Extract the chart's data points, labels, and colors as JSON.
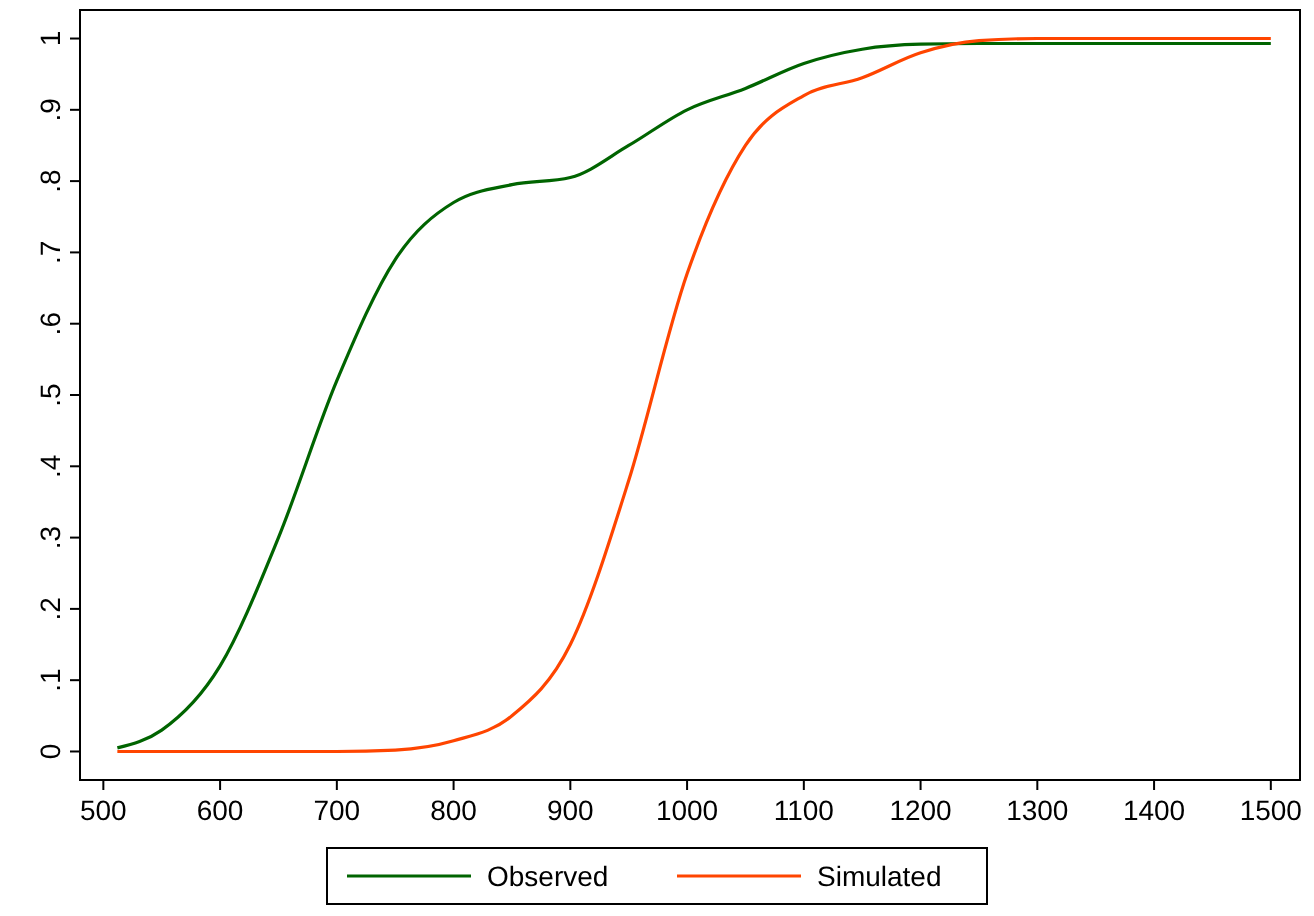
{
  "chart_data": {
    "type": "line",
    "x": [
      512,
      550,
      600,
      650,
      700,
      750,
      800,
      850,
      900,
      950,
      1000,
      1050,
      1100,
      1150,
      1200,
      1250,
      1300,
      1500
    ],
    "series": [
      {
        "name": "Observed",
        "color": "#006400",
        "values": [
          0.005,
          0.03,
          0.12,
          0.3,
          0.52,
          0.69,
          0.77,
          0.795,
          0.805,
          0.85,
          0.9,
          0.93,
          0.965,
          0.985,
          0.992,
          0.993,
          0.993,
          0.993
        ]
      },
      {
        "name": "Simulated",
        "color": "#ff4500",
        "values": [
          0,
          0,
          0,
          0,
          0,
          0.002,
          0.015,
          0.05,
          0.15,
          0.38,
          0.67,
          0.85,
          0.92,
          0.945,
          0.98,
          0.997,
          1.0,
          1.0
        ]
      }
    ],
    "xlim": [
      480,
      1525
    ],
    "xticks": [
      500,
      600,
      700,
      800,
      900,
      1000,
      1100,
      1200,
      1300,
      1400,
      1500
    ],
    "ylim": [
      -0.04,
      1.04
    ],
    "yticks": [
      0,
      {
        "value": 0.1,
        "label": ".1"
      },
      {
        "value": 0.2,
        "label": ".2"
      },
      {
        "value": 0.3,
        "label": ".3"
      },
      {
        "value": 0.4,
        "label": ".4"
      },
      {
        "value": 0.5,
        "label": ".5"
      },
      {
        "value": 0.6,
        "label": ".6"
      },
      {
        "value": 0.7,
        "label": ".7"
      },
      {
        "value": 0.8,
        "label": ".8"
      },
      {
        "value": 0.9,
        "label": ".9"
      },
      1
    ],
    "grid": false,
    "legend": "bottom",
    "marker": "none",
    "line_style": "solid"
  }
}
